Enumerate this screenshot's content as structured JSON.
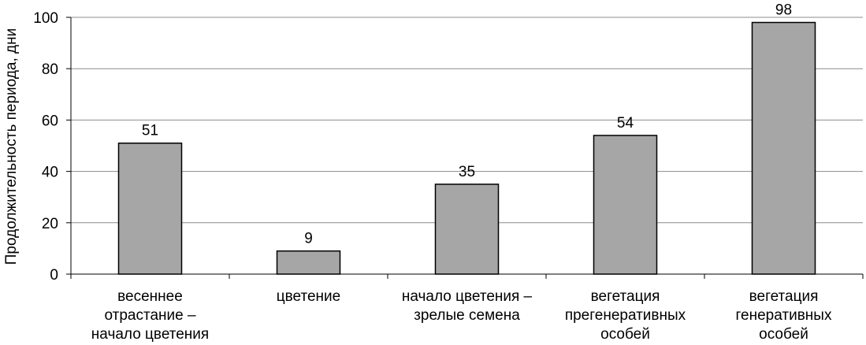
{
  "chart_data": {
    "type": "bar",
    "title": "",
    "xlabel": "",
    "ylabel": "Продолжительность периода, дни",
    "ylim": [
      0,
      100
    ],
    "yticks": [
      0,
      20,
      40,
      60,
      80,
      100
    ],
    "grid": true,
    "legend": "none",
    "categories": [
      [
        "весеннее",
        "отрастание –",
        "начало цветения"
      ],
      [
        "цветение"
      ],
      [
        "начало цветения –",
        "зрелые семена"
      ],
      [
        "вегетация",
        "прегенеративных",
        "особей"
      ],
      [
        "вегетация",
        "генеративных",
        "особей"
      ]
    ],
    "series": [
      {
        "values": [
          51,
          9,
          35,
          54,
          98
        ]
      }
    ],
    "data_labels": true,
    "colors": {
      "bar": "#a6a6a6",
      "bar_stroke": "#000000",
      "grid": "#8c8c8c",
      "axis": "#000000"
    }
  }
}
